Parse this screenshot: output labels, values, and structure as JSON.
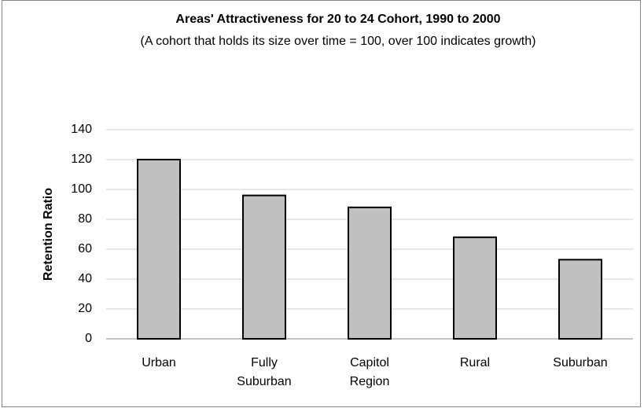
{
  "chart_data": {
    "type": "bar",
    "title": "Areas' Attractiveness for 20 to 24 Cohort, 1990 to 2000",
    "subtitle": "(A cohort that holds its size over time = 100, over 100 indicates growth)",
    "y_label": "Retention Ratio",
    "categories": [
      "Urban",
      "Fully Suburban",
      "Capitol Region",
      "Rural",
      "Suburban"
    ],
    "values": [
      120,
      96,
      88,
      68,
      53
    ],
    "color": "#c0c0c0",
    "ylim": [
      0,
      140
    ],
    "yticks": [
      0,
      20,
      40,
      60,
      80,
      100,
      120,
      140
    ],
    "grid": true
  }
}
